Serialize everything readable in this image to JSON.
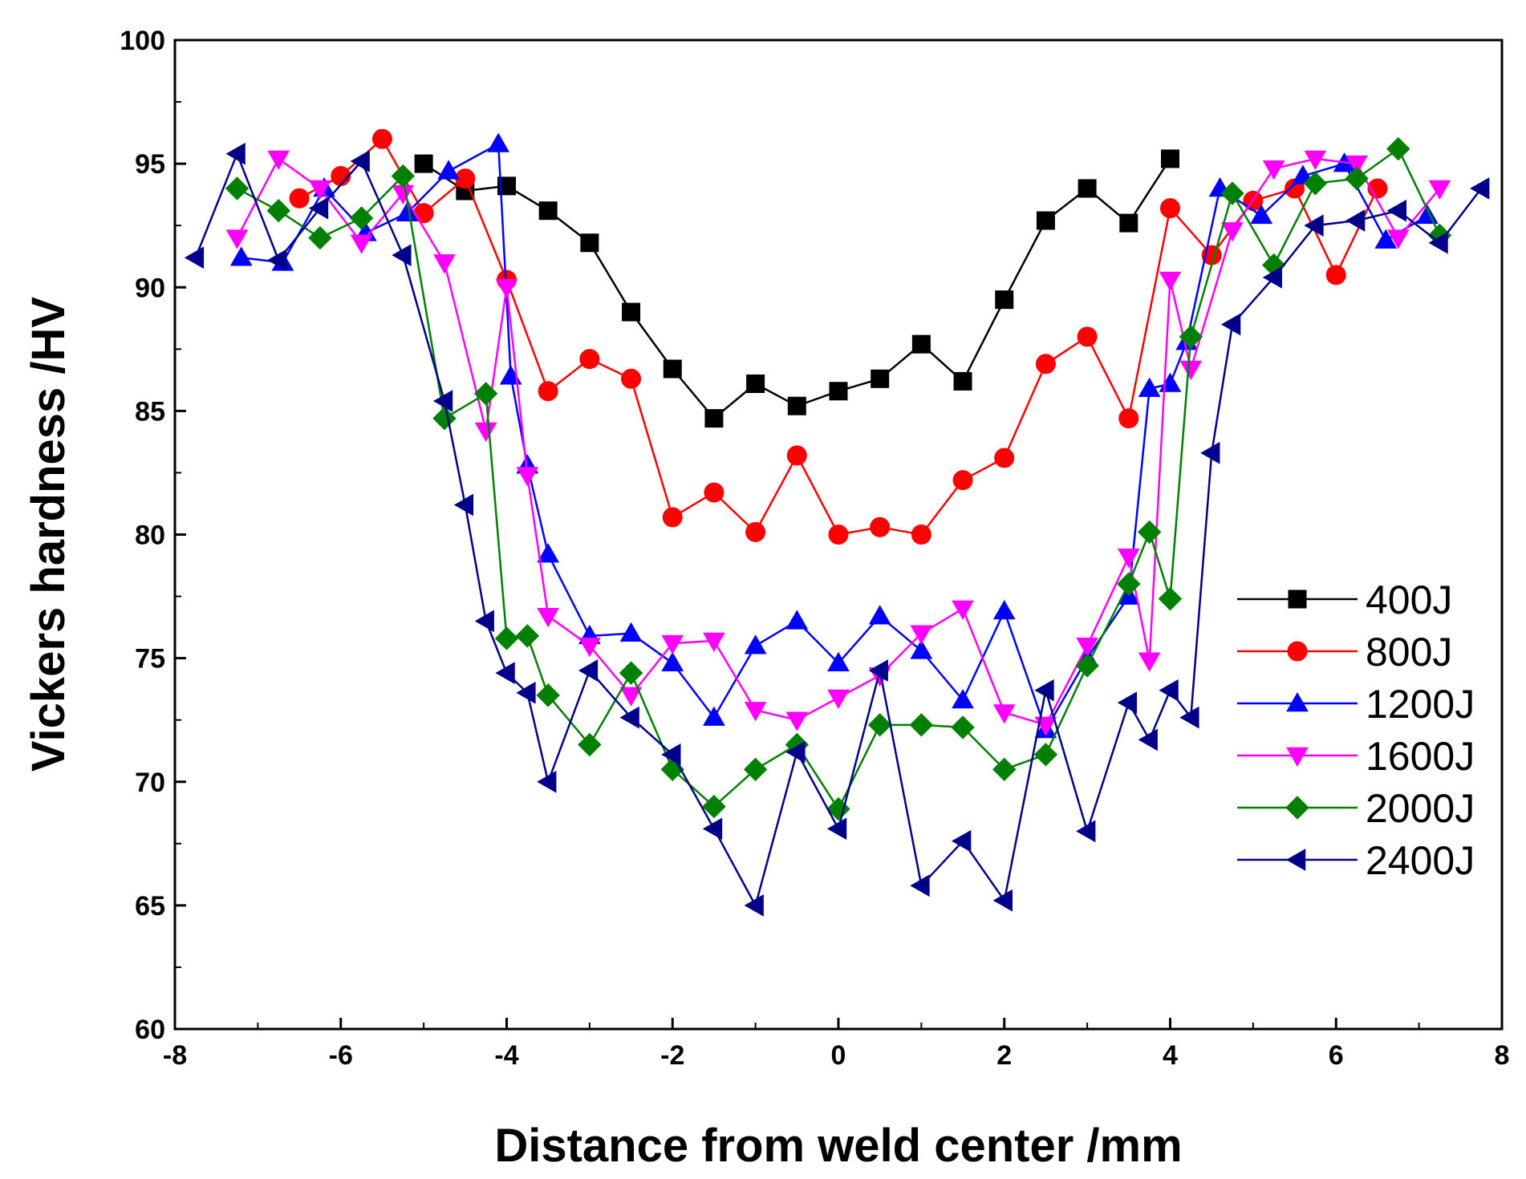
{
  "chart_data": {
    "type": "line",
    "title": "",
    "xlabel": "Distance from weld center /mm",
    "ylabel": "Vickers hardness /HV",
    "xlim": [
      -8,
      8
    ],
    "ylim": [
      60,
      100
    ],
    "xticks": [
      -8,
      -6,
      -4,
      -2,
      0,
      2,
      4,
      6,
      8
    ],
    "yticks": [
      60,
      65,
      70,
      75,
      80,
      85,
      90,
      95,
      100
    ],
    "xtick_labels": [
      "-8",
      "-6",
      "-4",
      "-2",
      "0",
      "2",
      "4",
      "6",
      "8"
    ],
    "ytick_labels": [
      "60",
      "65",
      "70",
      "75",
      "80",
      "85",
      "90",
      "95",
      "100"
    ],
    "grid": false,
    "legend_position": "right",
    "series": [
      {
        "name": "400J",
        "color": "#000000",
        "marker": "square",
        "x": [
          -5,
          -4.5,
          -4,
          -3.5,
          -3,
          -2.5,
          -2,
          -1.5,
          -1,
          -0.5,
          0,
          0.5,
          1,
          1.5,
          2,
          2.5,
          3,
          3.5,
          4
        ],
        "y": [
          95.0,
          93.9,
          94.1,
          93.1,
          91.8,
          89.0,
          86.7,
          84.7,
          86.1,
          85.2,
          85.8,
          86.3,
          87.7,
          86.2,
          89.5,
          92.7,
          94.0,
          92.6,
          95.2
        ]
      },
      {
        "name": "800J",
        "color": "#ff0000",
        "marker": "circle",
        "x": [
          -6.5,
          -6,
          -5.5,
          -5,
          -4.5,
          -4,
          -3.5,
          -3,
          -2.5,
          -2,
          -1.5,
          -1,
          -0.5,
          0,
          0.5,
          1,
          1.5,
          2,
          2.5,
          3,
          3.5,
          4,
          4.5,
          5,
          5.5,
          6,
          6.5
        ],
        "y": [
          93.6,
          94.5,
          96.0,
          93.0,
          94.4,
          90.3,
          85.8,
          87.1,
          86.3,
          80.7,
          81.7,
          80.1,
          83.2,
          80.0,
          80.3,
          80.0,
          82.2,
          83.1,
          86.9,
          88.0,
          84.7,
          93.2,
          91.3,
          93.5,
          94.0,
          90.5,
          94.0
        ]
      },
      {
        "name": "1200J",
        "color": "#0000ff",
        "marker": "triangle-up",
        "x": [
          -7.2,
          -6.7,
          -6.2,
          -5.7,
          -5.2,
          -4.7,
          -4.1,
          -3.95,
          -3.75,
          -3.5,
          -3,
          -2.5,
          -2,
          -1.5,
          -1,
          -0.5,
          0,
          0.5,
          1,
          1.5,
          2,
          2.5,
          3,
          3.5,
          3.75,
          4,
          4.2,
          4.6,
          5.1,
          5.6,
          6.1,
          6.6,
          7.1
        ],
        "y": [
          91.2,
          91.0,
          94.0,
          92.2,
          93.0,
          94.7,
          95.8,
          86.4,
          82.8,
          79.2,
          75.9,
          76.0,
          74.8,
          72.6,
          75.5,
          76.5,
          74.8,
          76.7,
          75.3,
          73.3,
          76.9,
          72.1,
          75.0,
          77.5,
          85.9,
          86.1,
          87.8,
          94.0,
          92.9,
          94.5,
          95.0,
          91.9,
          92.9
        ]
      },
      {
        "name": "1600J",
        "color": "#ff00ff",
        "marker": "triangle-down",
        "x": [
          -7.25,
          -6.75,
          -6.25,
          -5.75,
          -5.25,
          -4.75,
          -4.25,
          -4,
          -3.75,
          -3.5,
          -3,
          -2.5,
          -2,
          -1.5,
          -1,
          -0.5,
          0,
          0.5,
          1,
          1.5,
          2,
          2.5,
          3,
          3.5,
          3.75,
          4,
          4.25,
          4.75,
          5.25,
          5.75,
          6.25,
          6.75,
          7.25
        ],
        "y": [
          92.0,
          95.2,
          94.0,
          91.8,
          93.8,
          91.0,
          84.2,
          90.0,
          82.4,
          76.7,
          75.5,
          73.5,
          75.6,
          75.7,
          72.9,
          72.5,
          73.4,
          74.3,
          76.0,
          77.0,
          72.8,
          72.3,
          75.5,
          79.1,
          74.9,
          90.3,
          86.7,
          92.3,
          94.8,
          95.2,
          95.0,
          92.0,
          94.0
        ]
      },
      {
        "name": "2000J",
        "color": "#008000",
        "marker": "diamond",
        "x": [
          -7.25,
          -6.75,
          -6.25,
          -5.75,
          -5.25,
          -4.75,
          -4.25,
          -4,
          -3.75,
          -3.5,
          -3,
          -2.5,
          -2,
          -1.5,
          -1,
          -0.5,
          0,
          0.5,
          1,
          1.5,
          2,
          2.5,
          3,
          3.5,
          3.75,
          4,
          4.25,
          4.75,
          5.25,
          5.75,
          6.25,
          6.75,
          7.25
        ],
        "y": [
          94.0,
          93.1,
          92.0,
          92.8,
          94.5,
          84.7,
          85.7,
          75.8,
          75.9,
          73.5,
          71.5,
          74.4,
          70.5,
          69.0,
          70.5,
          71.5,
          68.9,
          72.3,
          72.3,
          72.2,
          70.5,
          71.1,
          74.7,
          78.0,
          80.1,
          77.4,
          88.0,
          93.8,
          90.9,
          94.2,
          94.4,
          95.6,
          92.1
        ]
      },
      {
        "name": "2400J",
        "color": "#00008b",
        "marker": "triangle-left",
        "x": [
          -7.75,
          -7.25,
          -6.75,
          -6.25,
          -5.75,
          -5.25,
          -4.75,
          -4.5,
          -4.25,
          -4,
          -3.75,
          -3.5,
          -3,
          -2.5,
          -2,
          -1.5,
          -1,
          -0.5,
          0,
          0.5,
          1,
          1.5,
          2,
          2.5,
          3,
          3.5,
          3.75,
          4,
          4.25,
          4.5,
          4.75,
          5.25,
          5.75,
          6.25,
          6.75,
          7.25,
          7.75
        ],
        "y": [
          91.2,
          95.4,
          91.1,
          93.2,
          95.1,
          91.3,
          85.4,
          81.2,
          76.5,
          74.4,
          73.6,
          70.0,
          74.5,
          72.6,
          71.1,
          68.1,
          65.0,
          71.2,
          68.1,
          74.5,
          65.8,
          67.6,
          65.2,
          73.7,
          68.0,
          73.2,
          71.7,
          73.7,
          72.6,
          83.3,
          88.5,
          90.4,
          92.5,
          92.7,
          93.1,
          91.8,
          94.0
        ]
      }
    ]
  }
}
